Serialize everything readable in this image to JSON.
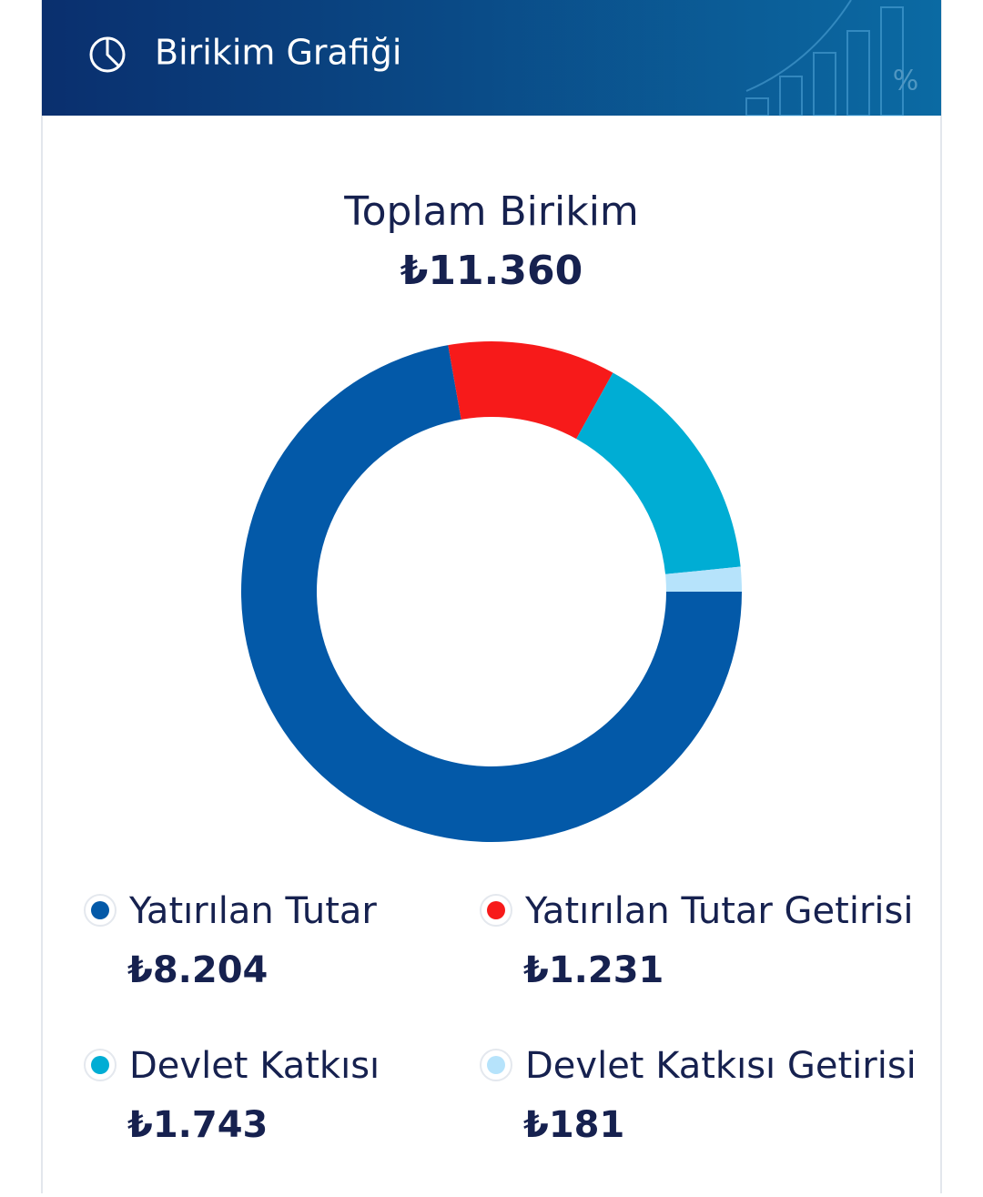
{
  "header": {
    "title": "Birikim Grafiği"
  },
  "chart_data": {
    "type": "pie",
    "donut": true,
    "title": "Toplam Birikim",
    "total": "₺11.360",
    "categories": [
      "Yatırılan Tutar",
      "Yatırılan Tutar Getirisi",
      "Devlet Katkısı",
      "Devlet Katkısı Getirisi"
    ],
    "values": [
      8204,
      1231,
      1743,
      181
    ],
    "value_labels": [
      "₺8.204",
      "₺1.231",
      "₺1.743",
      "₺181"
    ],
    "colors": [
      "#0359a8",
      "#f71a1a",
      "#00add4",
      "#b6e3fb"
    ]
  }
}
